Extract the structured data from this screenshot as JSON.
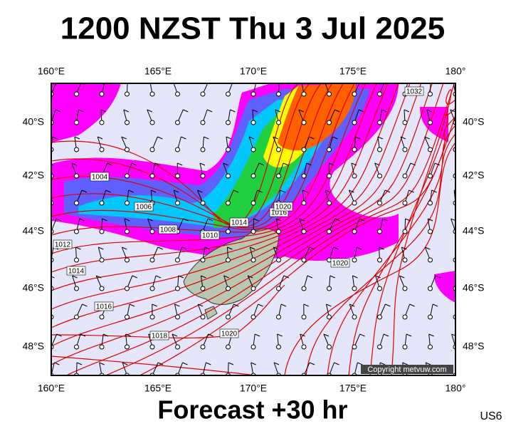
{
  "header": {
    "title": "1200 NZST Thu 3 Jul 2025"
  },
  "footer": {
    "forecast": "Forecast +30 hr",
    "model": "US6"
  },
  "map": {
    "lon_labels": [
      "160°E",
      "165°E",
      "170°E",
      "175°E",
      "180°"
    ],
    "lat_labels": [
      "40°S",
      "42°S",
      "44°S",
      "46°S",
      "48°S"
    ],
    "copyright": "Copyright metvuw.com",
    "isobar_labels": [
      "1004",
      "1006",
      "1008",
      "1010",
      "1012",
      "1014",
      "1016",
      "1018",
      "1020",
      "1020",
      "1014",
      "1016",
      "1020",
      "1032"
    ]
  }
}
